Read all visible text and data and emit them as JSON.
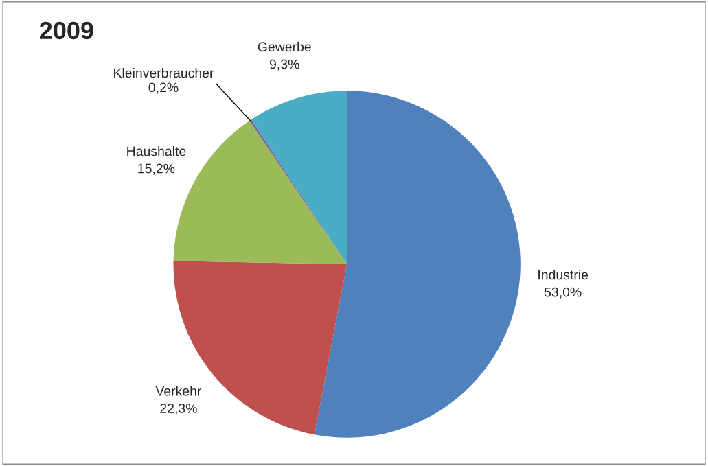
{
  "chart_data": {
    "type": "pie",
    "title": "2009",
    "categories": [
      "Industrie",
      "Verkehr",
      "Haushalte",
      "Kleinverbraucher",
      "Gewerbe"
    ],
    "values": [
      53.0,
      22.3,
      15.2,
      0.2,
      9.3
    ],
    "value_labels": [
      "53,0%",
      "22,3%",
      "15,2%",
      "0,2%",
      "9,3%"
    ],
    "colors": [
      "#4f81bd",
      "#c0504d",
      "#9bbb59",
      "#8064a2",
      "#4bacc6"
    ],
    "legend": false
  }
}
